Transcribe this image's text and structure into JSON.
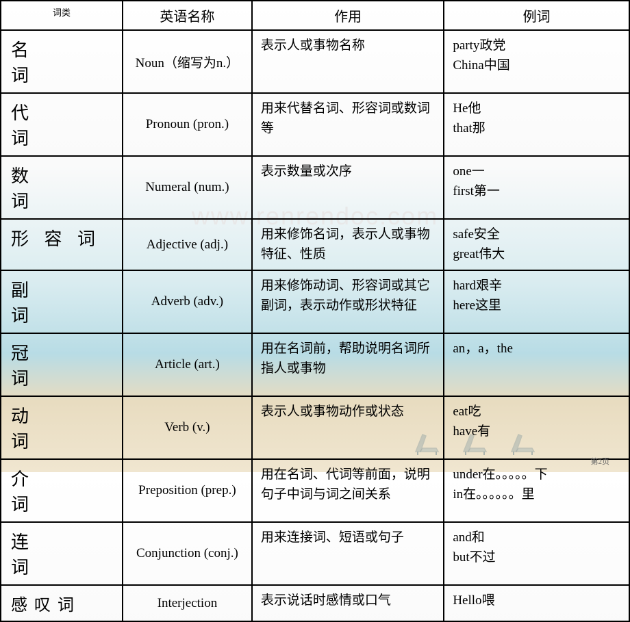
{
  "headers": {
    "col1": "词类",
    "col2": "英语名称",
    "col3": "作用",
    "col4": "例词"
  },
  "rows": [
    {
      "pos": "名　　词",
      "en": "Noun（缩写为n.）",
      "func": "表示人或事物名称",
      "ex": "party政党\nChina中国"
    },
    {
      "pos": "代　　词",
      "en": "Pronoun (pron.)",
      "func": "用来代替名词、形容词或数词等",
      "ex": "He他\nthat那"
    },
    {
      "pos": "数　　词",
      "en": "Numeral (num.)",
      "func": "表示数量或次序",
      "ex": "one一\nfirst第一"
    },
    {
      "pos": "形 容 词",
      "en": "Adjective (adj.)",
      "func": "用来修饰名词，表示人或事物特征、性质",
      "ex": "safe安全\ngreat伟大"
    },
    {
      "pos": "副　　词",
      "en": "Adverb (adv.)",
      "func": "用来修饰动词、形容词或其它副词，表示动作或形状特征",
      "ex": "hard艰辛\nhere这里"
    },
    {
      "pos": "冠　　词",
      "en": "Article (art.)",
      "func": "用在名词前，帮助说明名词所指人或事物",
      "ex": "an，a，the"
    },
    {
      "pos": "动　　词",
      "en": "Verb (v.)",
      "func": "表示人或事物动作或状态",
      "ex": "eat吃\nhave有"
    },
    {
      "pos": "介　　词",
      "en": "Preposition (prep.)",
      "func": "用在名词、代词等前面，说明句子中词与词之间关系",
      "ex": "under在。。。。。下\nin在。。。。。。里"
    },
    {
      "pos": "连　　词",
      "en": "Conjunction (conj.)",
      "func": "用来连接词、短语或句子",
      "ex": "and和\nbut不过"
    },
    {
      "pos": "感 叹 词",
      "en": "Interjection",
      "func": "表示说话时感情或口气",
      "ex": "Hello喂"
    }
  ],
  "watermark": "www.renrendoc.com",
  "page_num": "第2页",
  "colors": {
    "border": "#000000",
    "bg_top": "#ffffff",
    "bg_mid": "#d9ecf0",
    "bg_sand": "#f0e6d0",
    "watermark_color": "#e8e8e8"
  }
}
